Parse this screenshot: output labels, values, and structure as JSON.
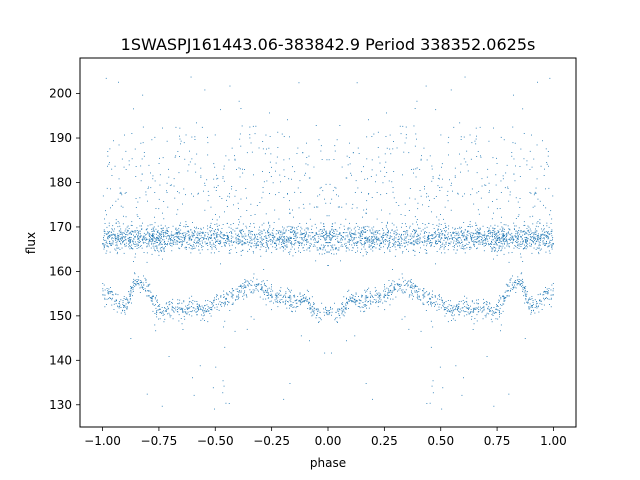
{
  "chart_data": {
    "type": "scatter",
    "title": "1SWASPJ161443.06-383842.9 Period 338352.0625s",
    "xlabel": "phase",
    "ylabel": "flux",
    "xlim": [
      -1.1,
      1.1
    ],
    "ylim": [
      125,
      208
    ],
    "xticks": [
      -1.0,
      -0.75,
      -0.5,
      -0.25,
      0.0,
      0.25,
      0.5,
      0.75,
      1.0
    ],
    "xtick_labels": [
      "−1.00",
      "−0.75",
      "−0.50",
      "−0.25",
      "0.00",
      "0.25",
      "0.50",
      "0.75",
      "1.00"
    ],
    "yticks": [
      130,
      140,
      150,
      160,
      170,
      180,
      190,
      200
    ],
    "ytick_labels": [
      "130",
      "140",
      "150",
      "160",
      "170",
      "180",
      "190",
      "200"
    ],
    "grid": false,
    "marker_color": "#1f77b4",
    "series": [
      {
        "phase_range": [
          -1.0,
          1.0
        ],
        "mirrored_about_zero": true,
        "main_band_center": 167.5,
        "main_band_spread": 2.5,
        "secondary_band_points": [
          [
            0.0,
            151
          ],
          [
            0.05,
            150
          ],
          [
            0.1,
            154
          ],
          [
            0.15,
            153
          ],
          [
            0.2,
            154
          ],
          [
            0.25,
            155
          ],
          [
            0.3,
            156
          ],
          [
            0.35,
            157
          ],
          [
            0.4,
            155
          ],
          [
            0.45,
            154
          ],
          [
            0.5,
            153
          ],
          [
            0.55,
            151
          ],
          [
            0.6,
            152
          ],
          [
            0.65,
            151
          ],
          [
            0.7,
            152
          ],
          [
            0.75,
            151
          ],
          [
            0.8,
            156
          ],
          [
            0.85,
            158
          ],
          [
            0.9,
            152
          ],
          [
            0.95,
            154
          ],
          [
            1.0,
            155
          ]
        ],
        "upper_scatter_points": [
          [
            0.02,
            180
          ],
          [
            0.05,
            182
          ],
          [
            0.08,
            184
          ],
          [
            0.28,
            174
          ],
          [
            0.45,
            185
          ],
          [
            0.47,
            181
          ],
          [
            0.6,
            176
          ],
          [
            0.72,
            186
          ],
          [
            0.75,
            190
          ],
          [
            0.8,
            174
          ],
          [
            0.88,
            176
          ],
          [
            0.93,
            190
          ],
          [
            0.97,
            178
          ]
        ],
        "sparse_outlier_range": [
          128,
          204
        ]
      }
    ]
  }
}
